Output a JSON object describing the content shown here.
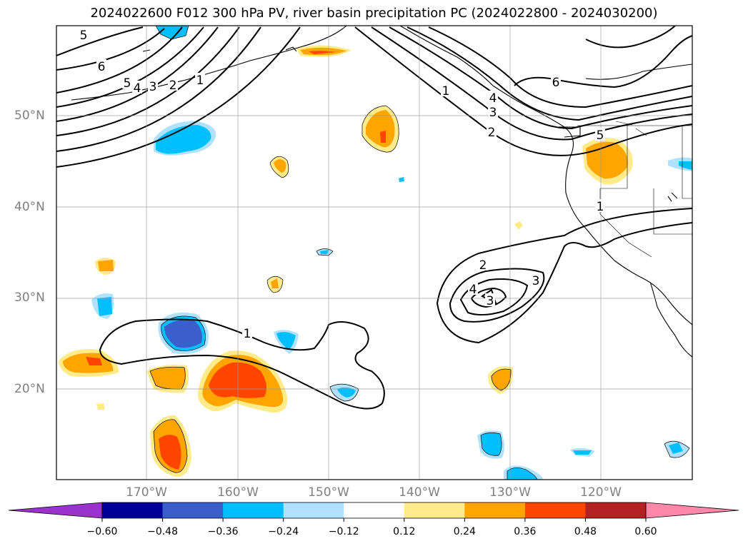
{
  "title": "2024022600 F012 300 hPa PV, river basin precipitation PC (2024022800 - 2024030200)",
  "latitudes": [
    "50°N",
    "40°N",
    "30°N",
    "20°N"
  ],
  "longitudes": [
    "170°W",
    "160°W",
    "150°W",
    "140°W",
    "130°W",
    "120°W"
  ],
  "colorbar": {
    "ticks": [
      "−0.60",
      "−0.48",
      "−0.36",
      "−0.24",
      "−0.12",
      "0.12",
      "0.24",
      "0.36",
      "0.48",
      "0.60"
    ],
    "colors": [
      "#9933cc",
      "#000099",
      "#3a5fcd",
      "#00bfff",
      "#b0e2ff",
      "#ffffff",
      "#ffeb8a",
      "#ffa500",
      "#ff4500",
      "#b22222",
      "#ff88aa"
    ]
  },
  "contour_labels": [
    "5",
    "6",
    "5",
    "4",
    "3",
    "2",
    "1",
    "1",
    "4",
    "3",
    "2",
    "6",
    "5",
    "1",
    "2",
    "4",
    "3",
    "3",
    "1"
  ]
}
